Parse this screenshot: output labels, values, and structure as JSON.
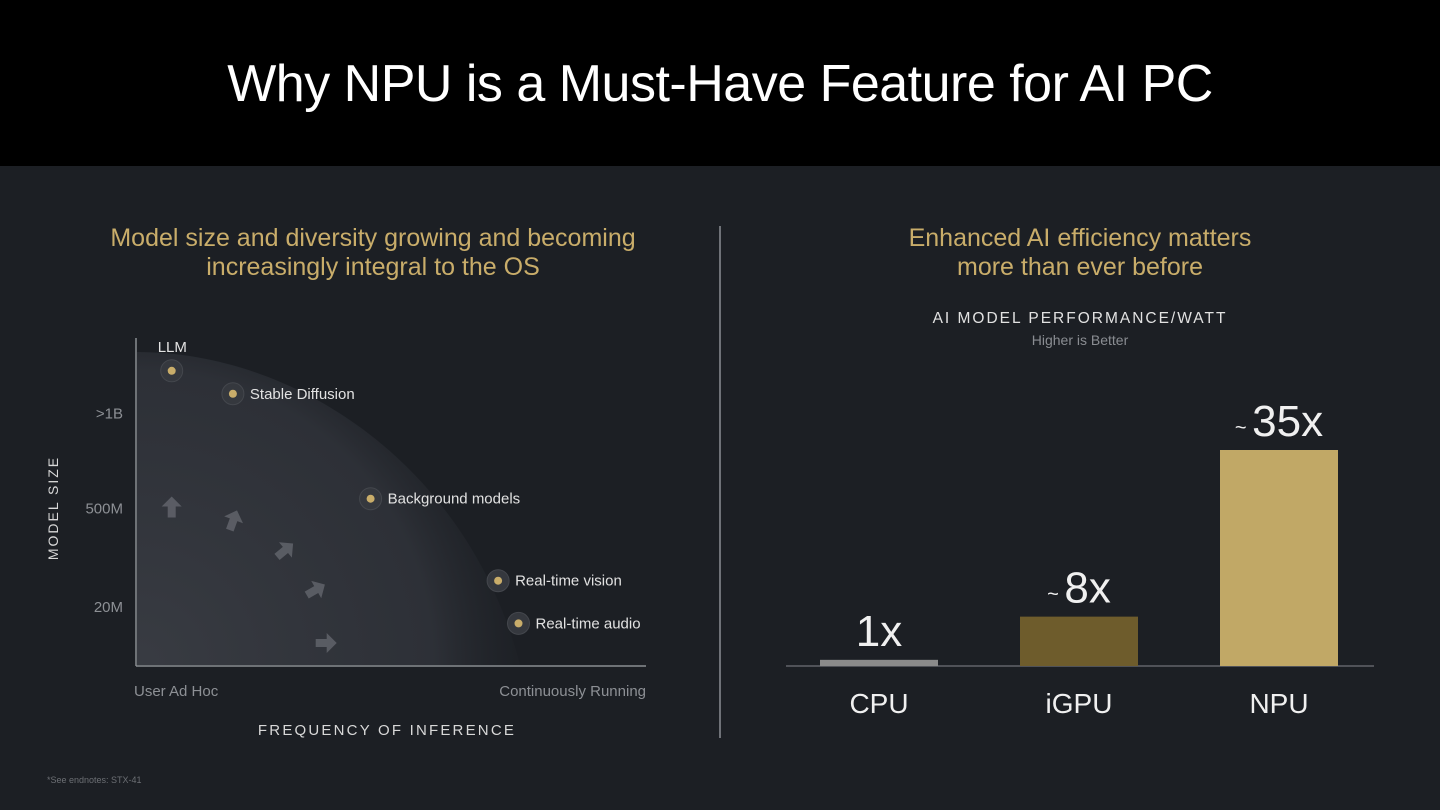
{
  "title": "Why NPU is a Must-Have Feature for AI PC",
  "left_heading_line1": "Model size and diversity growing and becoming",
  "left_heading_line2": "increasingly integral to the OS",
  "right_heading_line1": "Enhanced AI efficiency matters",
  "right_heading_line2": "more than ever before",
  "footnote": "*See endnotes: STX-41",
  "colors": {
    "accent_gold": "#c9ad6a",
    "bar_cpu": "#8a8a8a",
    "bar_igpu": "#6e5c2c",
    "bar_npu": "#c1a866",
    "background": "#1c1f24",
    "header": "#000000"
  },
  "chart_data": [
    {
      "type": "scatter",
      "xlabel": "FREQUENCY OF INFERENCE",
      "ylabel": "MODEL SIZE",
      "x_ticks": [
        "User Ad Hoc",
        "Continuously Running"
      ],
      "y_ticks": [
        ">1B",
        "500M",
        "20M"
      ],
      "points": [
        {
          "label": "LLM",
          "x": 0.07,
          "y": 0.9
        },
        {
          "label": "Stable Diffusion",
          "x": 0.19,
          "y": 0.83
        },
        {
          "label": "Background models",
          "x": 0.46,
          "y": 0.51
        },
        {
          "label": "Real-time vision",
          "x": 0.71,
          "y": 0.26
        },
        {
          "label": "Real-time audio",
          "x": 0.75,
          "y": 0.13
        }
      ],
      "arrows": [
        {
          "x": 0.07,
          "y": 0.48,
          "angle": -90
        },
        {
          "x": 0.19,
          "y": 0.44,
          "angle": -70
        },
        {
          "x": 0.29,
          "y": 0.35,
          "angle": -40
        },
        {
          "x": 0.35,
          "y": 0.23,
          "angle": -30
        },
        {
          "x": 0.37,
          "y": 0.07,
          "angle": 0
        }
      ]
    },
    {
      "type": "bar",
      "title": "AI MODEL PERFORMANCE/WATT",
      "subtitle": "Higher is Better",
      "categories": [
        "CPU",
        "iGPU",
        "NPU"
      ],
      "values": [
        1,
        8,
        35
      ],
      "value_labels": [
        {
          "prefix": "",
          "number": "1x"
        },
        {
          "prefix": "~",
          "number": "8x"
        },
        {
          "prefix": "~",
          "number": "35x"
        }
      ],
      "ylim": [
        0,
        35
      ]
    }
  ]
}
